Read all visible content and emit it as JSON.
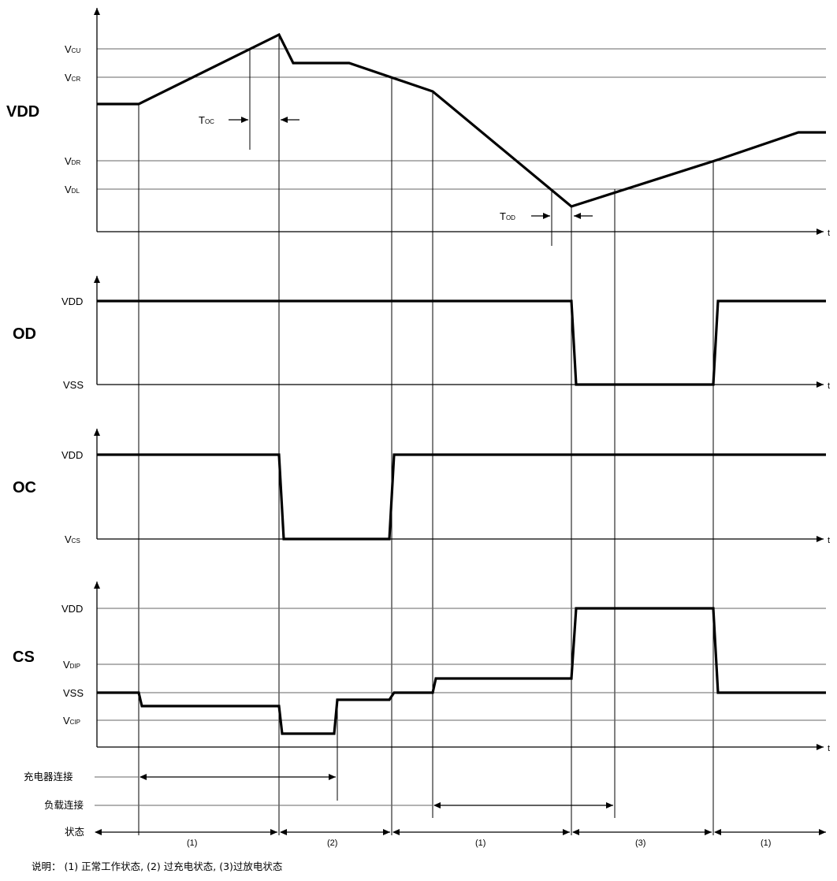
{
  "signals": {
    "vdd": {
      "label": "VDD",
      "levels": {
        "vcu": {
          "main": "V",
          "sub": "CU"
        },
        "vcr": {
          "main": "V",
          "sub": "CR"
        },
        "vdr": {
          "main": "V",
          "sub": "DR"
        },
        "vdl": {
          "main": "V",
          "sub": "DL"
        }
      },
      "toc": {
        "main": "T",
        "sub": "OC"
      },
      "tod": {
        "main": "T",
        "sub": "OD"
      }
    },
    "od": {
      "label": "OD",
      "high": "VDD",
      "low": "VSS"
    },
    "oc": {
      "label": "OC",
      "high": "VDD",
      "low": {
        "main": "V",
        "sub": "CS"
      }
    },
    "cs": {
      "label": "CS",
      "high": "VDD",
      "vdip": {
        "main": "V",
        "sub": "DIP"
      },
      "vss": "VSS",
      "vcip": {
        "main": "V",
        "sub": "CIP"
      }
    }
  },
  "time_label": "t",
  "rows": {
    "charger": "充电器连接",
    "load": "负载连接",
    "state": "状态"
  },
  "states": [
    "(1)",
    "(2)",
    "(1)",
    "(3)",
    "(1)"
  ],
  "note": "说明： (1) 正常工作状态, (2) 过充电状态, (3)过放电状态"
}
